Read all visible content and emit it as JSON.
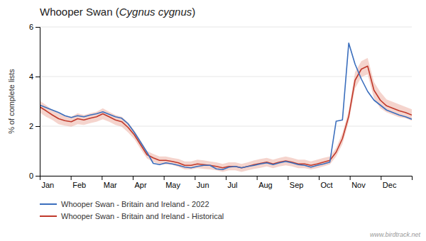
{
  "chart_data": {
    "type": "line",
    "title": "Whooper Swan (Cygnus cygnus)",
    "ylabel": "% of complete lists",
    "annotations": [
      "www.birdtrack.net"
    ],
    "x": [
      0,
      0.20339,
      0.40678,
      0.610169,
      0.813559,
      1.016949,
      1.220339,
      1.423729,
      1.627119,
      1.830508,
      2.033898,
      2.237288,
      2.440678,
      2.644068,
      2.847458,
      3.050847,
      3.254237,
      3.457627,
      3.661017,
      3.864407,
      4.067797,
      4.271186,
      4.474576,
      4.677966,
      4.881356,
      5.084746,
      5.288136,
      5.491525,
      5.694915,
      5.898305,
      6.101695,
      6.305085,
      6.508475,
      6.711864,
      6.915254,
      7.118644,
      7.322034,
      7.525424,
      7.728814,
      7.932203,
      8.135593,
      8.338983,
      8.542373,
      8.745763,
      8.949153,
      9.152542,
      9.355932,
      9.559322,
      9.762712,
      9.966102,
      10.169492,
      10.372881,
      10.576271,
      10.779661,
      10.983051,
      11.186441,
      11.389831,
      11.59322,
      11.79661,
      12
    ],
    "xlim": [
      0,
      12
    ],
    "xticks": [
      {
        "value": 0,
        "label": "Jan"
      },
      {
        "value": 1,
        "label": "Feb"
      },
      {
        "value": 2,
        "label": "Mar"
      },
      {
        "value": 3,
        "label": "Apr"
      },
      {
        "value": 4,
        "label": "May"
      },
      {
        "value": 5,
        "label": "Jun"
      },
      {
        "value": 6,
        "label": "Jul"
      },
      {
        "value": 7,
        "label": "Aug"
      },
      {
        "value": 8,
        "label": "Sep"
      },
      {
        "value": 9,
        "label": "Oct"
      },
      {
        "value": 10,
        "label": "Nov"
      },
      {
        "value": 11,
        "label": "Dec"
      }
    ],
    "ylim": [
      0,
      6
    ],
    "yticks": [
      0,
      2,
      4,
      6
    ],
    "grid": true,
    "legend": "bottom",
    "series": [
      {
        "name": "Whooper Swan - Britain and Ireland - 2022",
        "type": "line",
        "color": "#3a6ebd",
        "values": [
          2.85,
          2.75,
          2.65,
          2.55,
          2.42,
          2.35,
          2.42,
          2.38,
          2.45,
          2.5,
          2.58,
          2.48,
          2.38,
          2.32,
          2.1,
          1.75,
          1.35,
          0.95,
          0.5,
          0.45,
          0.52,
          0.48,
          0.42,
          0.35,
          0.32,
          0.38,
          0.42,
          0.42,
          0.28,
          0.25,
          0.35,
          0.38,
          0.32,
          0.38,
          0.42,
          0.48,
          0.52,
          0.45,
          0.52,
          0.58,
          0.52,
          0.45,
          0.42,
          0.35,
          0.42,
          0.48,
          0.55,
          2.2,
          2.25,
          5.35,
          4.5,
          3.9,
          3.4,
          3.05,
          2.85,
          2.65,
          2.55,
          2.45,
          2.38,
          2.28
        ]
      },
      {
        "name": "Whooper Swan - Britain and Ireland - Historical",
        "type": "line",
        "color": "#c0392b",
        "values": [
          2.78,
          2.62,
          2.45,
          2.3,
          2.22,
          2.18,
          2.3,
          2.25,
          2.32,
          2.38,
          2.5,
          2.38,
          2.25,
          2.18,
          1.95,
          1.65,
          1.25,
          0.85,
          0.72,
          0.62,
          0.62,
          0.58,
          0.52,
          0.42,
          0.42,
          0.48,
          0.45,
          0.42,
          0.38,
          0.32,
          0.38,
          0.38,
          0.32,
          0.38,
          0.45,
          0.5,
          0.55,
          0.48,
          0.55,
          0.6,
          0.55,
          0.48,
          0.48,
          0.42,
          0.48,
          0.55,
          0.62,
          0.95,
          1.5,
          2.4,
          3.85,
          4.3,
          4.42,
          3.45,
          3.05,
          2.82,
          2.72,
          2.62,
          2.55,
          2.45
        ]
      },
      {
        "type": "area",
        "color": "#e8a090",
        "lower": [
          2.55,
          2.38,
          2.25,
          2.08,
          2.02,
          1.98,
          2.08,
          2.05,
          2.12,
          2.18,
          2.28,
          2.18,
          2.05,
          1.98,
          1.75,
          1.48,
          1.08,
          0.7,
          0.56,
          0.46,
          0.46,
          0.44,
          0.36,
          0.26,
          0.26,
          0.31,
          0.28,
          0.26,
          0.22,
          0.16,
          0.22,
          0.22,
          0.16,
          0.22,
          0.28,
          0.32,
          0.38,
          0.31,
          0.38,
          0.42,
          0.38,
          0.31,
          0.31,
          0.26,
          0.31,
          0.38,
          0.46,
          0.78,
          1.28,
          2.18,
          3.52,
          3.98,
          4.09,
          3.12,
          2.72,
          2.56,
          2.46,
          2.36,
          2.32,
          2.22
        ],
        "upper": [
          3.02,
          2.85,
          2.65,
          2.52,
          2.42,
          2.38,
          2.52,
          2.45,
          2.52,
          2.58,
          2.72,
          2.58,
          2.45,
          2.38,
          2.15,
          1.82,
          1.42,
          1.0,
          0.88,
          0.78,
          0.78,
          0.72,
          0.68,
          0.58,
          0.58,
          0.65,
          0.62,
          0.58,
          0.54,
          0.48,
          0.54,
          0.54,
          0.48,
          0.54,
          0.62,
          0.68,
          0.72,
          0.65,
          0.72,
          0.78,
          0.72,
          0.65,
          0.65,
          0.58,
          0.65,
          0.72,
          0.78,
          1.12,
          1.72,
          2.62,
          4.18,
          4.62,
          4.75,
          3.78,
          3.38,
          3.08,
          2.98,
          2.88,
          2.78,
          2.68
        ]
      }
    ]
  }
}
